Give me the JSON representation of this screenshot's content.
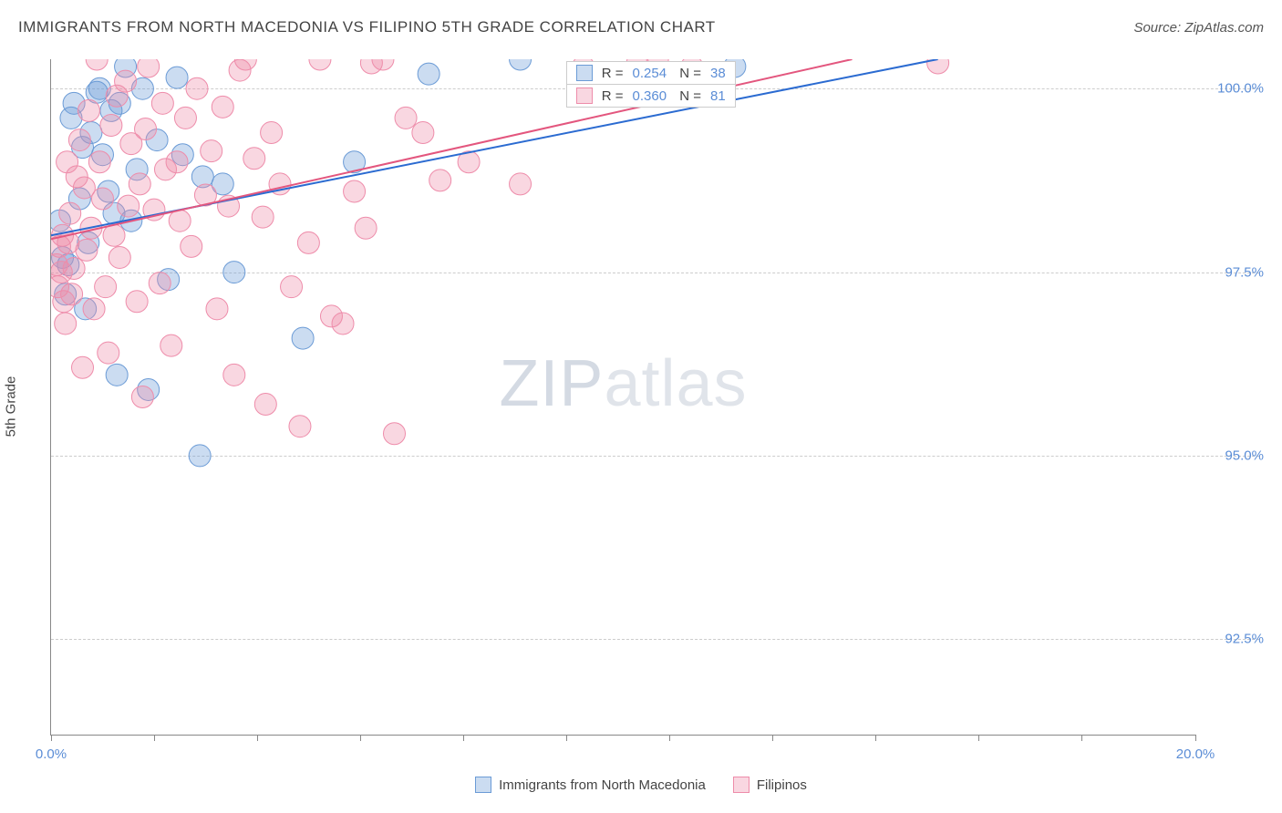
{
  "header": {
    "title": "IMMIGRANTS FROM NORTH MACEDONIA VS FILIPINO 5TH GRADE CORRELATION CHART",
    "source": "Source: ZipAtlas.com"
  },
  "chart": {
    "type": "scatter",
    "ylabel": "5th Grade",
    "xlim": [
      0,
      20
    ],
    "ylim": [
      91.2,
      100.4
    ],
    "xtick_positions": [
      0,
      1.8,
      3.6,
      5.4,
      7.2,
      9.0,
      10.8,
      12.6,
      14.4,
      16.2,
      18.0,
      20.0
    ],
    "xtick_labels": {
      "0": "0.0%",
      "20": "20.0%"
    },
    "ytick_positions": [
      92.5,
      95.0,
      97.5,
      100.0
    ],
    "ytick_labels": [
      "92.5%",
      "95.0%",
      "97.5%",
      "100.0%"
    ],
    "background_color": "#ffffff",
    "grid_color": "#cccccc",
    "axis_color": "#888888",
    "tick_label_color": "#5b8dd6",
    "label_color": "#444444",
    "label_fontsize": 15,
    "title_fontsize": 17,
    "watermark": "ZIPatlas",
    "watermark_zip": "ZIP",
    "watermark_atlas": "atlas",
    "series": [
      {
        "name": "Immigrants from North Macedonia",
        "fill": "rgba(107,155,214,0.35)",
        "stroke": "#6b9bd6",
        "marker_radius": 12,
        "line_color": "#2b6bd1",
        "line_width": 2,
        "trend": {
          "x1": 0,
          "y1": 98.0,
          "x2": 15.5,
          "y2": 100.4
        },
        "legend_r": "0.254",
        "legend_n": "38",
        "points": [
          [
            0.15,
            98.2
          ],
          [
            0.2,
            97.7
          ],
          [
            0.25,
            97.2
          ],
          [
            0.3,
            97.6
          ],
          [
            0.35,
            99.6
          ],
          [
            0.4,
            99.8
          ],
          [
            0.5,
            98.5
          ],
          [
            0.55,
            99.2
          ],
          [
            0.6,
            97.0
          ],
          [
            0.65,
            97.9
          ],
          [
            0.7,
            99.4
          ],
          [
            0.8,
            99.95
          ],
          [
            0.85,
            100.0
          ],
          [
            0.9,
            99.1
          ],
          [
            1.0,
            98.6
          ],
          [
            1.05,
            99.7
          ],
          [
            1.1,
            98.3
          ],
          [
            1.15,
            96.1
          ],
          [
            1.2,
            99.8
          ],
          [
            1.3,
            100.3
          ],
          [
            1.4,
            98.2
          ],
          [
            1.5,
            98.9
          ],
          [
            1.6,
            100.0
          ],
          [
            1.7,
            95.9
          ],
          [
            1.85,
            99.3
          ],
          [
            2.05,
            97.4
          ],
          [
            2.2,
            100.15
          ],
          [
            2.3,
            99.1
          ],
          [
            2.6,
            95.0
          ],
          [
            2.65,
            98.8
          ],
          [
            3.0,
            98.7
          ],
          [
            3.2,
            97.5
          ],
          [
            4.4,
            96.6
          ],
          [
            5.3,
            99.0
          ],
          [
            6.6,
            100.2
          ],
          [
            8.2,
            100.4
          ],
          [
            10.2,
            100.0
          ],
          [
            11.95,
            100.3
          ]
        ]
      },
      {
        "name": "Filipinos",
        "fill": "rgba(238,140,170,0.35)",
        "stroke": "#ee8caa",
        "marker_radius": 12,
        "line_color": "#e3567e",
        "line_width": 2,
        "trend": {
          "x1": 0,
          "y1": 97.95,
          "x2": 14.0,
          "y2": 100.4
        },
        "legend_r": "0.360",
        "legend_n": "81",
        "points": [
          [
            0.1,
            97.6
          ],
          [
            0.12,
            97.3
          ],
          [
            0.15,
            97.85
          ],
          [
            0.18,
            97.5
          ],
          [
            0.2,
            98.0
          ],
          [
            0.22,
            97.1
          ],
          [
            0.25,
            96.8
          ],
          [
            0.28,
            99.0
          ],
          [
            0.3,
            97.9
          ],
          [
            0.33,
            98.3
          ],
          [
            0.36,
            97.2
          ],
          [
            0.4,
            97.55
          ],
          [
            0.45,
            98.8
          ],
          [
            0.5,
            99.3
          ],
          [
            0.55,
            96.2
          ],
          [
            0.58,
            98.65
          ],
          [
            0.62,
            97.8
          ],
          [
            0.66,
            99.7
          ],
          [
            0.7,
            98.1
          ],
          [
            0.75,
            97.0
          ],
          [
            0.8,
            100.4
          ],
          [
            0.85,
            99.0
          ],
          [
            0.9,
            98.5
          ],
          [
            0.95,
            97.3
          ],
          [
            1.0,
            96.4
          ],
          [
            1.05,
            99.5
          ],
          [
            1.1,
            98.0
          ],
          [
            1.15,
            99.9
          ],
          [
            1.2,
            97.7
          ],
          [
            1.3,
            100.1
          ],
          [
            1.35,
            98.4
          ],
          [
            1.4,
            99.25
          ],
          [
            1.5,
            97.1
          ],
          [
            1.55,
            98.7
          ],
          [
            1.6,
            95.8
          ],
          [
            1.65,
            99.45
          ],
          [
            1.7,
            100.3
          ],
          [
            1.8,
            98.35
          ],
          [
            1.9,
            97.35
          ],
          [
            1.95,
            99.8
          ],
          [
            2.0,
            98.9
          ],
          [
            2.1,
            96.5
          ],
          [
            2.2,
            99.0
          ],
          [
            2.25,
            98.2
          ],
          [
            2.35,
            99.6
          ],
          [
            2.45,
            97.85
          ],
          [
            2.55,
            100.0
          ],
          [
            2.7,
            98.55
          ],
          [
            2.8,
            99.15
          ],
          [
            2.9,
            97.0
          ],
          [
            3.0,
            99.75
          ],
          [
            3.1,
            98.4
          ],
          [
            3.2,
            96.1
          ],
          [
            3.3,
            100.25
          ],
          [
            3.4,
            100.4
          ],
          [
            3.55,
            99.05
          ],
          [
            3.7,
            98.25
          ],
          [
            3.75,
            95.7
          ],
          [
            3.85,
            99.4
          ],
          [
            4.0,
            98.7
          ],
          [
            4.2,
            97.3
          ],
          [
            4.35,
            95.4
          ],
          [
            4.5,
            97.9
          ],
          [
            4.7,
            100.4
          ],
          [
            4.9,
            96.9
          ],
          [
            5.1,
            96.8
          ],
          [
            5.3,
            98.6
          ],
          [
            5.5,
            98.1
          ],
          [
            5.6,
            100.35
          ],
          [
            5.8,
            100.4
          ],
          [
            6.0,
            95.3
          ],
          [
            6.2,
            99.6
          ],
          [
            6.5,
            99.4
          ],
          [
            6.8,
            98.75
          ],
          [
            7.3,
            99.0
          ],
          [
            8.2,
            98.7
          ],
          [
            9.3,
            100.3
          ],
          [
            10.25,
            100.35
          ],
          [
            10.6,
            100.4
          ],
          [
            11.2,
            100.3
          ],
          [
            15.5,
            100.35
          ]
        ]
      }
    ],
    "bottom_legend": [
      {
        "label": "Immigrants from North Macedonia",
        "fill": "rgba(107,155,214,0.35)",
        "border": "#6b9bd6"
      },
      {
        "label": "Filipinos",
        "fill": "rgba(238,140,170,0.35)",
        "border": "#ee8caa"
      }
    ]
  }
}
